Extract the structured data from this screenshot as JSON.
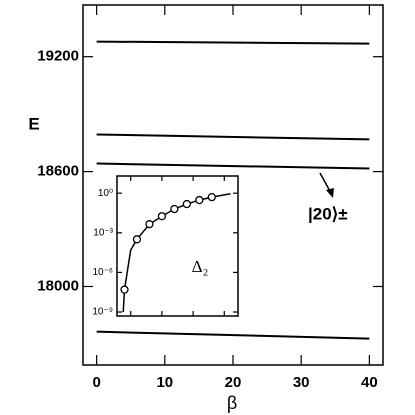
{
  "chart_data": [
    {
      "type": "line",
      "xlabel": "β",
      "ylabel": "E",
      "xlim": [
        -2,
        42
      ],
      "xticks": [
        0,
        10,
        20,
        30,
        40
      ],
      "ylim": [
        17590,
        19470
      ],
      "yticks": [
        18000,
        18600,
        19200
      ],
      "series": [
        {
          "color": "#000000",
          "x": [
            0,
            40
          ],
          "values": [
            19279,
            19268
          ]
        },
        {
          "color": "#000000",
          "x": [
            0,
            40
          ],
          "values": [
            18794,
            18768
          ]
        },
        {
          "color": "#000000",
          "x": [
            0,
            40
          ],
          "values": [
            18642,
            18616
          ]
        },
        {
          "color": "#000000",
          "x": [
            0,
            40
          ],
          "values": [
            17764,
            17728
          ]
        }
      ],
      "annotation": "|20⟩±"
    },
    {
      "type": "scatter",
      "label": "Δ₂",
      "ylog": true,
      "xlim": [
        2.8,
        22.2
      ],
      "xticks": [
        5,
        10,
        15,
        20
      ],
      "ylim": [
        5e-10,
        20
      ],
      "yticks": [
        {
          "value": 1,
          "label": "10⁰"
        },
        {
          "value": 0.001,
          "label": "10⁻³"
        },
        {
          "value": 1e-06,
          "label": "10⁻⁶"
        },
        {
          "value": 1e-09,
          "label": "10⁻⁹"
        }
      ],
      "x": [
        4,
        6,
        8,
        10,
        12,
        14,
        16,
        18
      ],
      "values": [
        5e-08,
        0.00032,
        0.0045,
        0.018,
        0.063,
        0.15,
        0.3,
        0.5
      ],
      "curve": {
        "x": [
          3.8,
          4,
          5,
          6,
          8,
          10,
          12,
          14,
          16,
          18,
          21
        ],
        "values": [
          1e-09,
          5e-08,
          5e-05,
          0.00032,
          0.0045,
          0.018,
          0.063,
          0.15,
          0.3,
          0.5,
          0.9
        ]
      }
    }
  ]
}
